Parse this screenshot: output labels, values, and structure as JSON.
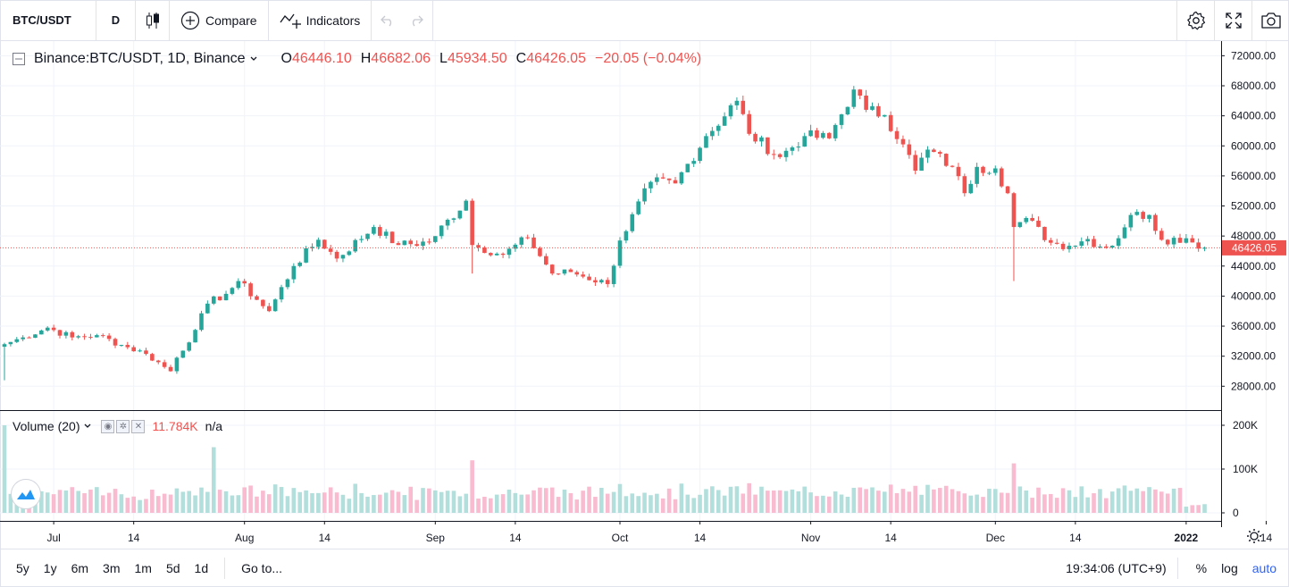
{
  "toolbar": {
    "symbol": "BTC/USDT",
    "interval": "D",
    "compare_label": "Compare",
    "indicators_label": "Indicators",
    "icons": [
      "candles-icon",
      "plus-circle-icon",
      "indicators-icon",
      "undo-icon",
      "redo-icon",
      "settings-icon",
      "fullscreen-icon",
      "camera-icon"
    ]
  },
  "legend": {
    "title": "Binance:BTC/USDT, 1D, Binance",
    "o_label": "O",
    "o": "46446.10",
    "h_label": "H",
    "h": "46682.06",
    "l_label": "L",
    "l": "45934.50",
    "c_label": "C",
    "c": "46426.05",
    "change": "−20.05 (−0.04%)"
  },
  "volume_legend": {
    "title": "Volume (20)",
    "value": "11.784K",
    "ma": "n/a"
  },
  "last_price_label": "46426.05",
  "colors": {
    "up": "#26a69a",
    "down": "#ef5350",
    "up_vol": "#b2dfdb",
    "down_vol": "#f8bbd0",
    "accent": "#2962ff"
  },
  "bottom": {
    "ranges": [
      "5y",
      "1y",
      "6m",
      "3m",
      "1m",
      "5d",
      "1d"
    ],
    "goto": "Go to...",
    "clock": "19:34:06 (UTC+9)",
    "percent": "%",
    "log": "log",
    "auto": "auto"
  },
  "chart_data": {
    "type": "candlestick",
    "symbol": "BTC/USDT",
    "interval": "1D",
    "xlim": [
      "2021-06-23",
      "2022-01-10"
    ],
    "ylim": [
      26000,
      73000
    ],
    "y_ticks": [
      "72000.00",
      "68000.00",
      "64000.00",
      "60000.00",
      "56000.00",
      "52000.00",
      "48000.00",
      "44000.00",
      "40000.00",
      "36000.00",
      "32000.00",
      "28000.00"
    ],
    "x_tick_labels": [
      {
        "date": "2021-07-01",
        "label": "Jul"
      },
      {
        "date": "2021-07-14",
        "label": "14"
      },
      {
        "date": "2021-08-01",
        "label": "Aug"
      },
      {
        "date": "2021-08-14",
        "label": "14"
      },
      {
        "date": "2021-09-01",
        "label": "Sep"
      },
      {
        "date": "2021-09-14",
        "label": "14"
      },
      {
        "date": "2021-10-01",
        "label": "Oct"
      },
      {
        "date": "2021-10-14",
        "label": "14"
      },
      {
        "date": "2021-11-01",
        "label": "Nov"
      },
      {
        "date": "2021-11-14",
        "label": "14"
      },
      {
        "date": "2021-12-01",
        "label": "Dec"
      },
      {
        "date": "2021-12-14",
        "label": "14"
      },
      {
        "date": "2022-01-01",
        "label": "2022"
      },
      {
        "date": "2022-01-14",
        "label": "14"
      }
    ],
    "volume_ylim": [
      0,
      230000
    ],
    "volume_ticks": [
      "200K",
      "100K",
      "0"
    ],
    "anchors": [
      {
        "date": "2021-06-23",
        "close": 33600
      },
      {
        "date": "2021-06-26",
        "close": 34500
      },
      {
        "date": "2021-06-30",
        "close": 35800
      },
      {
        "date": "2021-07-04",
        "close": 34500
      },
      {
        "date": "2021-07-08",
        "close": 34800
      },
      {
        "date": "2021-07-12",
        "close": 33500
      },
      {
        "date": "2021-07-16",
        "close": 32300
      },
      {
        "date": "2021-07-20",
        "close": 30000
      },
      {
        "date": "2021-07-21",
        "close": 31800
      },
      {
        "date": "2021-07-24",
        "close": 35500
      },
      {
        "date": "2021-07-26",
        "close": 39000
      },
      {
        "date": "2021-07-29",
        "close": 40300
      },
      {
        "date": "2021-07-31",
        "close": 42000
      },
      {
        "date": "2021-08-03",
        "close": 39500
      },
      {
        "date": "2021-08-05",
        "close": 38000
      },
      {
        "date": "2021-08-09",
        "close": 44000
      },
      {
        "date": "2021-08-13",
        "close": 47500
      },
      {
        "date": "2021-08-16",
        "close": 45000
      },
      {
        "date": "2021-08-22",
        "close": 49200
      },
      {
        "date": "2021-08-26",
        "close": 46800
      },
      {
        "date": "2021-08-31",
        "close": 47200
      },
      {
        "date": "2021-09-06",
        "close": 52700
      },
      {
        "date": "2021-09-07",
        "close": 46800
      },
      {
        "date": "2021-09-12",
        "close": 45500
      },
      {
        "date": "2021-09-16",
        "close": 47800
      },
      {
        "date": "2021-09-20",
        "close": 43000
      },
      {
        "date": "2021-09-23",
        "close": 43200
      },
      {
        "date": "2021-09-29",
        "close": 41600
      },
      {
        "date": "2021-10-01",
        "close": 47400
      },
      {
        "date": "2021-10-06",
        "close": 55200
      },
      {
        "date": "2021-10-10",
        "close": 55000
      },
      {
        "date": "2021-10-15",
        "close": 61300
      },
      {
        "date": "2021-10-20",
        "close": 66000
      },
      {
        "date": "2021-10-22",
        "close": 61600
      },
      {
        "date": "2021-10-27",
        "close": 58500
      },
      {
        "date": "2021-10-31",
        "close": 61300
      },
      {
        "date": "2021-11-04",
        "close": 61000
      },
      {
        "date": "2021-11-08",
        "close": 67500
      },
      {
        "date": "2021-11-10",
        "close": 64800
      },
      {
        "date": "2021-11-13",
        "close": 64100
      },
      {
        "date": "2021-11-16",
        "close": 60200
      },
      {
        "date": "2021-11-18",
        "close": 56700
      },
      {
        "date": "2021-11-20",
        "close": 59500
      },
      {
        "date": "2021-11-24",
        "close": 57200
      },
      {
        "date": "2021-11-26",
        "close": 53700
      },
      {
        "date": "2021-11-28",
        "close": 57200
      },
      {
        "date": "2021-12-01",
        "close": 57000
      },
      {
        "date": "2021-12-03",
        "close": 53700
      },
      {
        "date": "2021-12-04",
        "close": 49200
      },
      {
        "date": "2021-12-06",
        "close": 50400
      },
      {
        "date": "2021-12-10",
        "close": 47100
      },
      {
        "date": "2021-12-13",
        "close": 46700
      },
      {
        "date": "2021-12-16",
        "close": 47600
      },
      {
        "date": "2021-12-18",
        "close": 46600
      },
      {
        "date": "2021-12-20",
        "close": 46700
      },
      {
        "date": "2021-12-23",
        "close": 50800
      },
      {
        "date": "2021-12-26",
        "close": 50800
      },
      {
        "date": "2021-12-28",
        "close": 47500
      },
      {
        "date": "2022-01-01",
        "close": 47700
      },
      {
        "date": "2022-01-04",
        "close": 46400
      }
    ],
    "volume_spikes": [
      {
        "date": "2021-06-23",
        "value": 200000
      },
      {
        "date": "2021-07-27",
        "value": 150000
      },
      {
        "date": "2021-09-07",
        "value": 120000
      },
      {
        "date": "2021-12-04",
        "value": 113000
      }
    ],
    "last_price": 46426.05
  }
}
